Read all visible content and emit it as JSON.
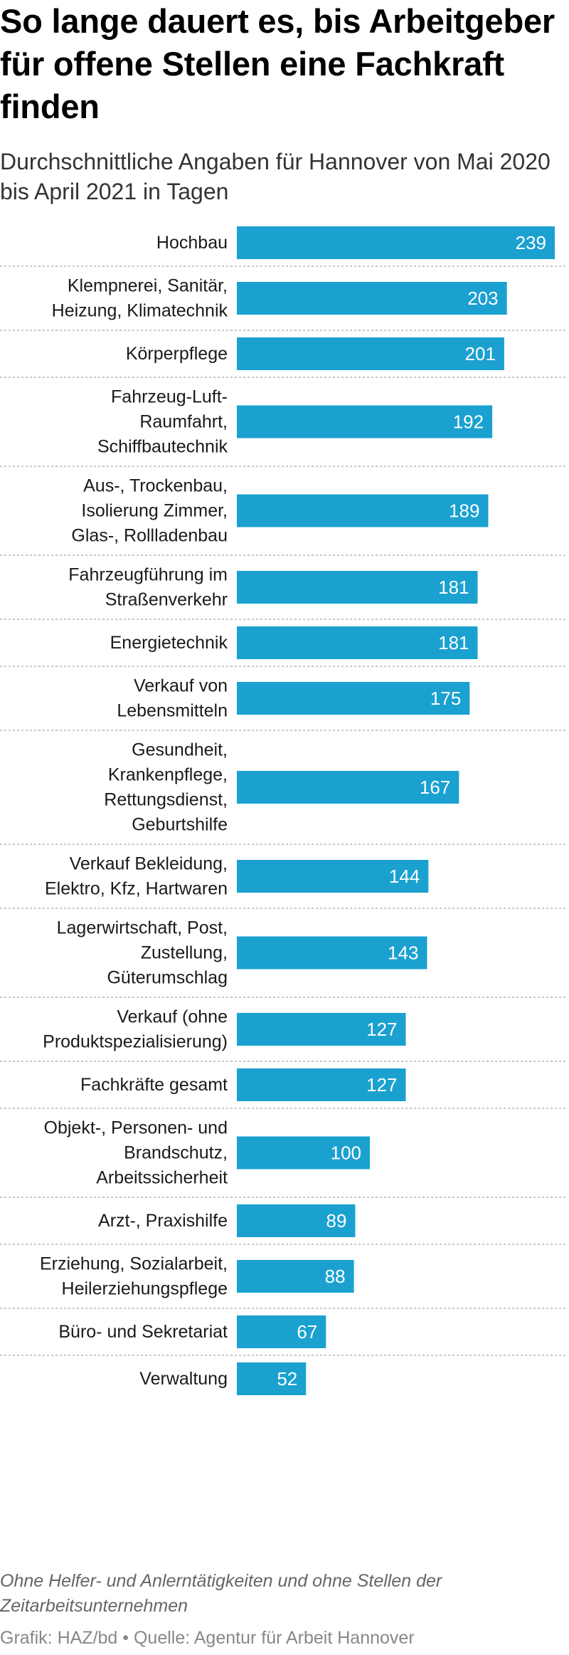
{
  "header": {
    "title": "So lange dauert es, bis Arbeitgeber für offene Stellen eine Fachkraft finden",
    "subtitle": "Durchschnittliche Angaben für Hannover von Mai 2020 bis April 2021 in Tagen"
  },
  "chart_data": {
    "type": "bar",
    "orientation": "horizontal",
    "xlim": [
      0,
      239
    ],
    "grid": false,
    "legend": "none",
    "bar_color": "#1aa1d0",
    "value_label_color": "#ffffff",
    "separator_color": "#b5b5b5",
    "categories": [
      "Hochbau",
      "Klempnerei, Sanitär, Heizung, Klimatechnik",
      "Körperpflege",
      "Fahrzeug-Luft-Raumfahrt, Schiffbautechnik",
      "Aus-, Trockenbau, Isolierung Zimmer, Glas-, Rollladenbau",
      "Fahrzeugführung im Straßenverkehr",
      "Energietechnik",
      "Verkauf von Lebensmitteln",
      "Gesundheit, Krankenpflege, Rettungsdienst, Geburtshilfe",
      "Verkauf Bekleidung, Elektro, Kfz, Hartwaren",
      "Lagerwirtschaft, Post, Zustellung, Güterumschlag",
      "Verkauf (ohne Produktspezialisierung)",
      "Fachkräfte gesamt",
      "Objekt-, Personen- und Brandschutz, Arbeitssicherheit",
      "Arzt-, Praxishilfe",
      "Erziehung, Sozialarbeit, Heilerziehungspflege",
      "Büro- und Sekretariat",
      "Verwaltung"
    ],
    "label_lines": [
      [
        "Hochbau"
      ],
      [
        "Klempnerei, Sanitär,",
        "Heizung, Klimatechnik"
      ],
      [
        "Körperpflege"
      ],
      [
        "Fahrzeug-Luft-",
        "Raumfahrt,",
        "Schiffbautechnik"
      ],
      [
        "Aus-, Trockenbau,",
        "Isolierung Zimmer,",
        "Glas-, Rollladenbau"
      ],
      [
        "Fahrzeugführung im",
        "Straßenverkehr"
      ],
      [
        "Energietechnik"
      ],
      [
        "Verkauf von",
        "Lebensmitteln"
      ],
      [
        "Gesundheit,",
        "Krankenpflege,",
        "Rettungsdienst,",
        "Geburtshilfe"
      ],
      [
        "Verkauf Bekleidung,",
        "Elektro, Kfz, Hartwaren"
      ],
      [
        "Lagerwirtschaft, Post,",
        "Zustellung,",
        "Güterumschlag"
      ],
      [
        "Verkauf (ohne",
        "Produktspezialisierung)"
      ],
      [
        "Fachkräfte gesamt"
      ],
      [
        "Objekt-, Personen- und",
        "Brandschutz,",
        "Arbeitssicherheit"
      ],
      [
        "Arzt-, Praxishilfe"
      ],
      [
        "Erziehung, Sozialarbeit,",
        "Heilerziehungspflege"
      ],
      [
        "Büro- und Sekretariat"
      ],
      [
        "Verwaltung"
      ]
    ],
    "values": [
      239,
      203,
      201,
      192,
      189,
      181,
      181,
      175,
      167,
      144,
      143,
      127,
      127,
      100,
      89,
      88,
      67,
      52
    ]
  },
  "footer": {
    "note": "Ohne Helfer- und Anlerntätigkeiten und ohne Stellen der Zeitarbeitsunternehmen",
    "credit": "Grafik: HAZ/bd • Quelle: Agentur für Arbeit Hannover"
  }
}
